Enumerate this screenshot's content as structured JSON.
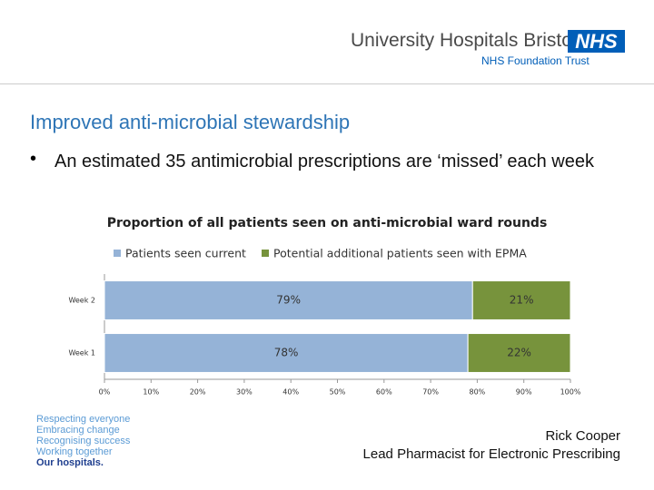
{
  "header": {
    "organisation": "University Hospitals Bristol",
    "logo": "NHS",
    "trust": "NHS Foundation Trust"
  },
  "slide": {
    "title": "Improved anti-microbial stewardship",
    "bullet": "An estimated 35 antimicrobial prescriptions are ‘missed’ each week"
  },
  "chart_data": {
    "type": "bar",
    "orientation": "horizontal",
    "stacked": true,
    "title": "Proportion of all patients seen on anti-microbial ward rounds",
    "categories": [
      "Week 2",
      "Week 1"
    ],
    "series": [
      {
        "name": "Patients seen current",
        "color": "#95b3d7",
        "values": [
          79,
          78
        ],
        "value_labels": [
          "79%",
          "78%"
        ]
      },
      {
        "name": "Potential additional patients seen with EPMA",
        "color": "#77933c",
        "values": [
          21,
          22
        ],
        "value_labels": [
          "21%",
          "22%"
        ]
      }
    ],
    "xlim": [
      0,
      100
    ],
    "xticks": [
      {
        "value": 0,
        "label": "0%"
      },
      {
        "value": 10,
        "label": "10%"
      },
      {
        "value": 20,
        "label": "20%"
      },
      {
        "value": 30,
        "label": "30%"
      },
      {
        "value": 40,
        "label": "40%"
      },
      {
        "value": 50,
        "label": "50%"
      },
      {
        "value": 60,
        "label": "60%"
      },
      {
        "value": 70,
        "label": "70%"
      },
      {
        "value": 80,
        "label": "80%"
      },
      {
        "value": 90,
        "label": "90%"
      },
      {
        "value": 100,
        "label": "100%"
      }
    ],
    "legend": "top",
    "grid": false
  },
  "values_list": [
    "Respecting everyone",
    "Embracing change",
    "Recognising success",
    "Working together",
    "Our hospitals."
  ],
  "footer": {
    "name": "Rick Cooper",
    "role": "Lead Pharmacist for Electronic Prescribing"
  }
}
